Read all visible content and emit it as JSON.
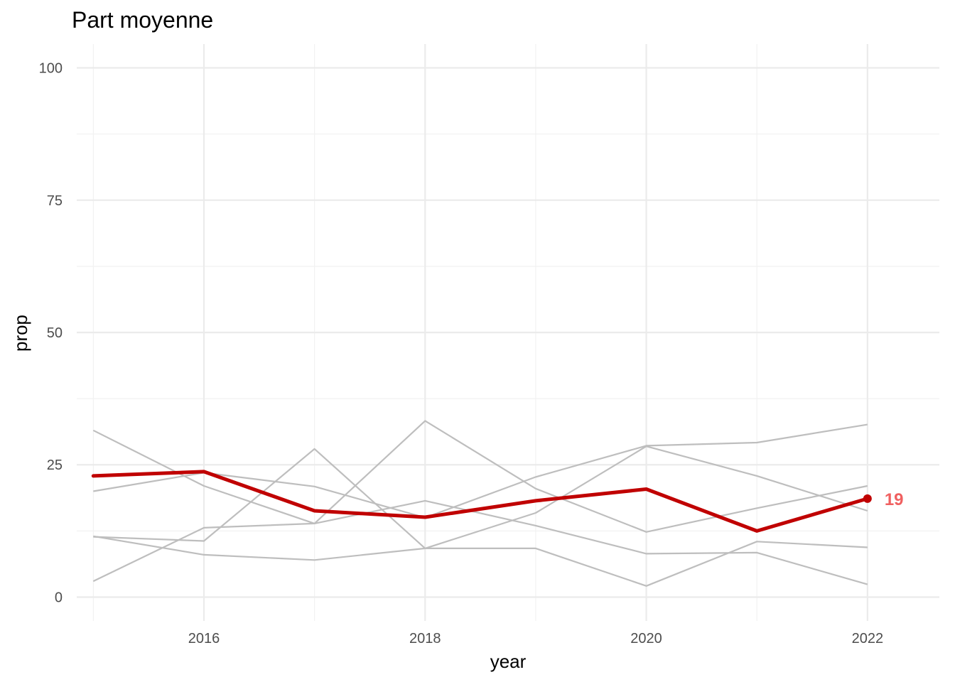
{
  "chart_data": {
    "type": "line",
    "title": "Part moyenne",
    "xlabel": "year",
    "ylabel": "prop",
    "xlim": [
      2014.85,
      2022.65
    ],
    "ylim": [
      -4.5,
      104.5
    ],
    "x_ticks_major": [
      2016,
      2018,
      2020,
      2022
    ],
    "x_ticks_minor": [
      2015,
      2017,
      2019,
      2021
    ],
    "y_ticks_major": [
      0,
      25,
      50,
      75,
      100
    ],
    "y_ticks_minor": [
      12.5,
      37.5,
      62.5,
      87.5
    ],
    "x": [
      2015,
      2016,
      2017,
      2018,
      2019,
      2020,
      2021,
      2022
    ],
    "grid": true,
    "legend": "none",
    "colors": {
      "highlight": "#c00000",
      "highlight_label": "#f06060",
      "context": "#bebebe"
    },
    "highlight_series": {
      "values": [
        22.9,
        23.7,
        16.3,
        15.1,
        18.2,
        20.4,
        12.5,
        18.6
      ],
      "end_label": "19"
    },
    "context_series": [
      {
        "values": [
          31.5,
          21.0,
          13.9,
          18.2,
          13.5,
          8.2,
          8.4,
          2.4
        ]
      },
      {
        "values": [
          20.0,
          23.5,
          20.9,
          15.0,
          22.7,
          28.6,
          29.2,
          32.6
        ]
      },
      {
        "values": [
          11.4,
          10.6,
          28.0,
          9.2,
          9.2,
          2.1,
          10.5,
          9.4
        ]
      },
      {
        "values": [
          11.5,
          8.0,
          7.0,
          9.2,
          15.9,
          28.5,
          22.9,
          16.3
        ]
      },
      {
        "values": [
          3.0,
          13.1,
          13.9,
          33.3,
          20.5,
          12.3,
          16.8,
          21.0
        ]
      }
    ]
  }
}
